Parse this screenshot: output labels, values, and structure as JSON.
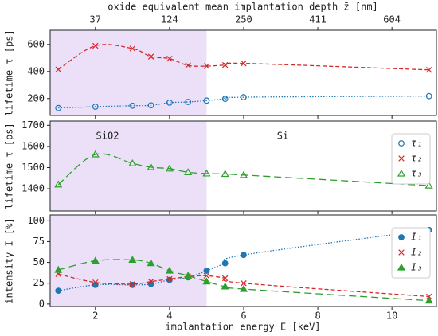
{
  "chart_data": [
    {
      "type": "line",
      "ylabel": "lifetime τ [ps]",
      "x2label": "oxide equivalent mean implantation depth z̄ [nm]",
      "x2ticks": [
        {
          "value": 2,
          "label": "37"
        },
        {
          "value": 4,
          "label": "124"
        },
        {
          "value": 6,
          "label": "250"
        },
        {
          "value": 8,
          "label": "411"
        },
        {
          "value": 10,
          "label": "604"
        }
      ],
      "x": [
        1,
        2,
        3,
        3.5,
        4,
        4.5,
        5,
        5.5,
        6,
        11
      ],
      "xlim": [
        0.78,
        11.2
      ],
      "ylim": [
        75,
        705
      ],
      "yticks": [
        200,
        400,
        600
      ],
      "shaded_until": 5,
      "shade_color": "#ebe0f8",
      "series": [
        {
          "name": "τ₁",
          "color": "#1f77b4",
          "marker": "open-circle",
          "line": "dotted",
          "values": [
            130,
            140,
            147,
            150,
            170,
            175,
            185,
            198,
            210,
            218
          ]
        },
        {
          "name": "τ₂",
          "color": "#d62728",
          "marker": "x",
          "line": "dashed",
          "values": [
            415,
            590,
            570,
            510,
            495,
            445,
            440,
            448,
            460,
            412
          ]
        }
      ]
    },
    {
      "type": "line",
      "ylabel": "lifetime τ [ps]",
      "annotations": [
        "SiO2",
        "Si"
      ],
      "legend": "upper right",
      "x": [
        1,
        2,
        3,
        3.5,
        4,
        4.5,
        5,
        5.5,
        6,
        11
      ],
      "xlim": [
        0.78,
        11.2
      ],
      "ylim": [
        1295,
        1720
      ],
      "yticks": [
        1400,
        1500,
        1600,
        1700
      ],
      "shaded_until": 5,
      "shade_color": "#ebe0f8",
      "series": [
        {
          "name": "τ₃",
          "color": "#2ca02c",
          "marker": "open-triangle",
          "line": "long-dashed",
          "values": [
            1420,
            1562,
            1520,
            1502,
            1495,
            1478,
            1472,
            1470,
            1465,
            1415
          ]
        }
      ]
    },
    {
      "type": "line",
      "ylabel": "intensity I [%]",
      "xlabel": "implantation energy E [keV]",
      "legend": "upper right",
      "x": [
        1,
        2,
        3,
        3.5,
        4,
        4.5,
        5,
        5.5,
        6,
        11
      ],
      "xlim": [
        0.78,
        11.2
      ],
      "ylim": [
        -3,
        107
      ],
      "yticks": [
        0,
        25,
        50,
        75,
        100
      ],
      "xticks": [
        2,
        4,
        6,
        8,
        10
      ],
      "shaded_until": 5,
      "shade_color": "#ebe0f8",
      "series": [
        {
          "name": "I₁",
          "color": "#1f77b4",
          "marker": "circle",
          "line": "dotted",
          "values": [
            16,
            23,
            23,
            24,
            29,
            32,
            40,
            49,
            59,
            89
          ]
        },
        {
          "name": "I₂",
          "color": "#d62728",
          "marker": "x",
          "line": "dashed",
          "values": [
            36,
            26,
            24,
            27,
            30,
            33,
            34,
            31,
            25,
            9
          ]
        },
        {
          "name": "I₃",
          "color": "#2ca02c",
          "marker": "triangle",
          "line": "long-dashed",
          "values": [
            41,
            52,
            53,
            49,
            40,
            34,
            27,
            21,
            18,
            4
          ]
        }
      ]
    }
  ]
}
